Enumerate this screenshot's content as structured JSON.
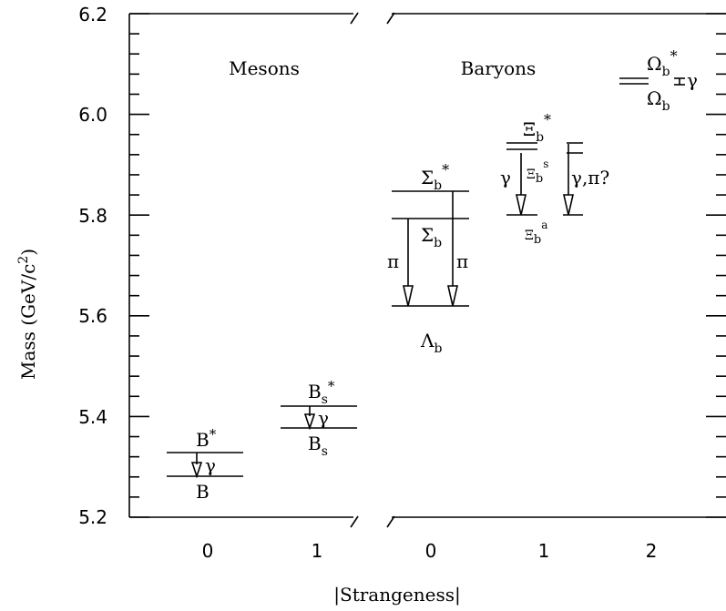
{
  "chart": {
    "y_axis_title": "Mass  (GeV/c",
    "y_axis_title_sup": "2",
    "y_axis_title_close": ")",
    "x_axis_title": "|Strangeness|",
    "y_range": [
      5.2,
      6.2
    ],
    "y_ticks": [
      "5.2",
      "5.4",
      "5.6",
      "5.8",
      "6.0",
      "6.2"
    ],
    "mesons_header": "Mesons",
    "baryons_header": "Baryons",
    "mesons_x_ticks": [
      "0",
      "1"
    ],
    "baryons_x_ticks": [
      "0",
      "1",
      "2"
    ]
  },
  "chart_data": {
    "type": "level-diagram",
    "ylabel": "Mass (GeV/c2)",
    "xlabel": "|Strangeness|",
    "ylim": [
      5.2,
      6.2
    ],
    "panels": [
      {
        "name": "Mesons",
        "columns": [
          {
            "strangeness": "0",
            "levels": [
              {
                "label": "B",
                "mass": 5.28
              },
              {
                "label": "B*",
                "mass": 5.325
              }
            ],
            "transitions": [
              {
                "from": "B*",
                "to": "B",
                "label": "γ"
              }
            ]
          },
          {
            "strangeness": "1",
            "levels": [
              {
                "label": "Bs",
                "mass": 5.375
              },
              {
                "label": "Bs*",
                "mass": 5.42
              }
            ],
            "transitions": [
              {
                "from": "Bs*",
                "to": "Bs",
                "label": "γ"
              }
            ]
          }
        ]
      },
      {
        "name": "Baryons",
        "columns": [
          {
            "strangeness": "0",
            "levels": [
              {
                "label": "Λb",
                "mass": 5.62
              },
              {
                "label": "Σb",
                "mass": 5.81
              },
              {
                "label": "Σb*",
                "mass": 5.835
              }
            ],
            "transitions": [
              {
                "from": "Σb",
                "to": "Λb",
                "label": "π"
              },
              {
                "from": "Σb*",
                "to": "Λb",
                "label": "π"
              }
            ]
          },
          {
            "strangeness": "1",
            "levels": [
              {
                "label": "Ξb",
                "mass": 5.8
              },
              {
                "label": "Ξ'b",
                "mass": 5.925
              },
              {
                "label": "Ξb*",
                "mass": 5.94
              }
            ],
            "transitions": [
              {
                "from": "Ξ'b",
                "to": "Ξb",
                "label": "γ"
              },
              {
                "from": "Ξb*",
                "to": "Ξb",
                "label": "γ,π?"
              }
            ]
          },
          {
            "strangeness": "2",
            "levels": [
              {
                "label": "Ωb",
                "mass": 6.065
              },
              {
                "label": "Ωb*",
                "mass": 6.075
              }
            ],
            "transitions": [
              {
                "from": "Ωb*",
                "to": "Ωb",
                "label": "γ"
              }
            ]
          }
        ]
      }
    ]
  },
  "labels": {
    "b": "B",
    "b_star": "B",
    "star": "*",
    "gamma": "γ",
    "bs_base": "B",
    "s_sub": "s",
    "b_sub": "b",
    "sigma": "Σ",
    "lambda": "Λ",
    "pi": "π",
    "xi": "Ξ",
    "a_sup": "a",
    "s_sup": "s",
    "omega": "Ω",
    "gamma_pi": "γ,π?"
  }
}
